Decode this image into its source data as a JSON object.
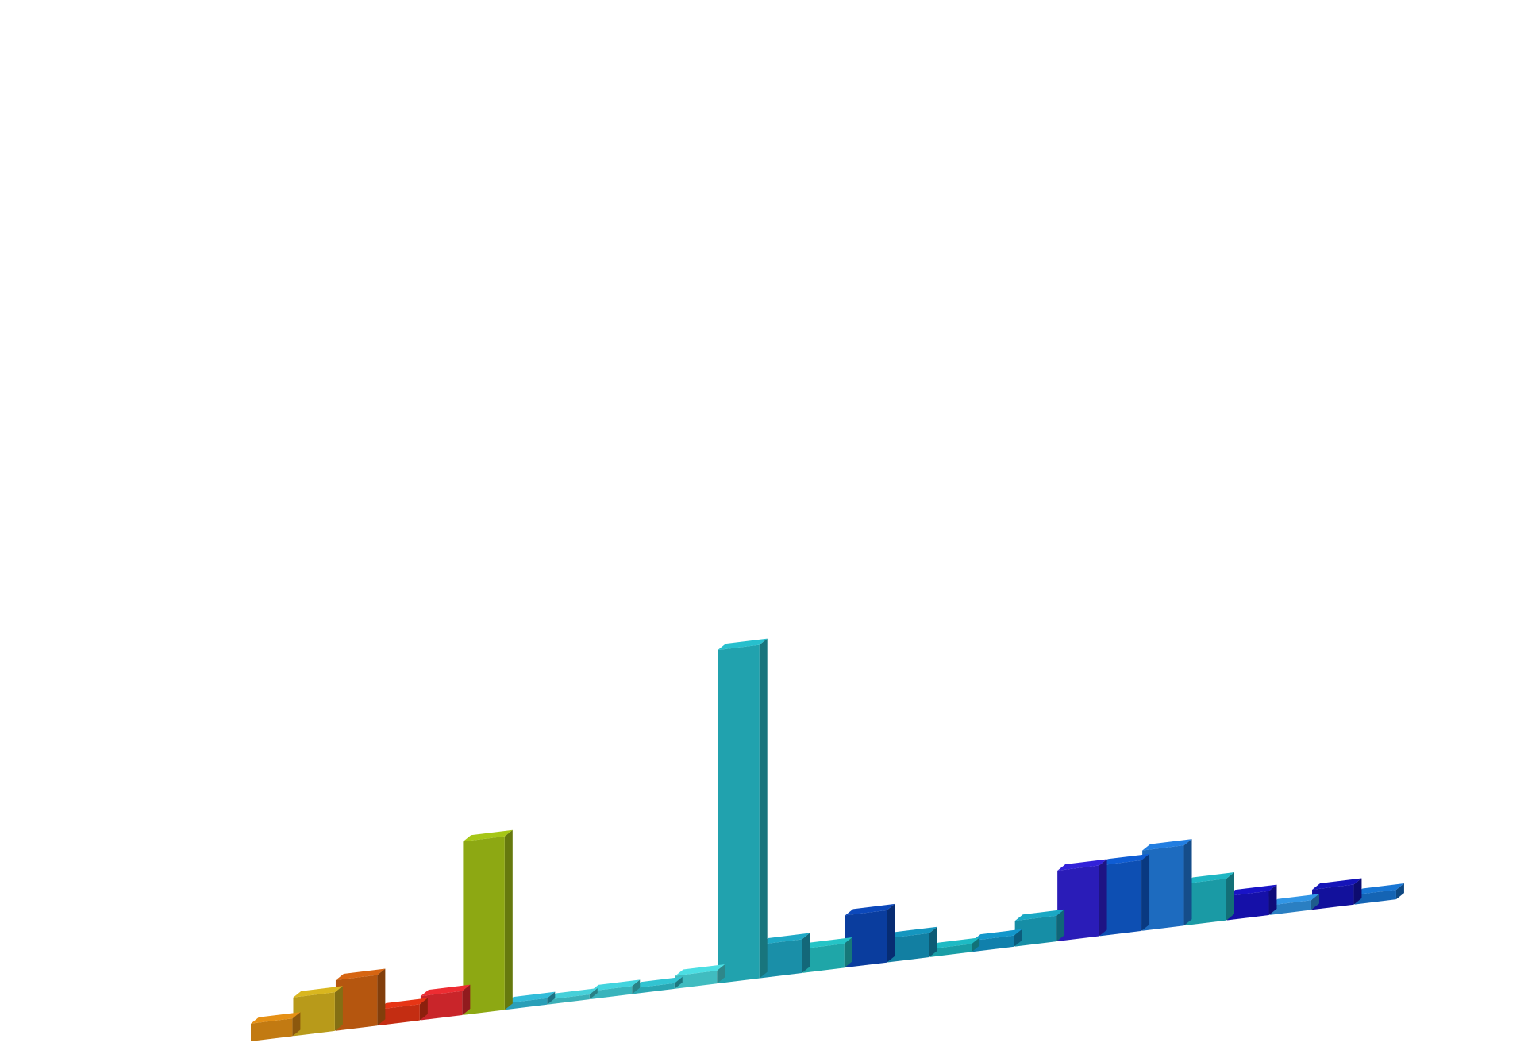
{
  "chart_data": {
    "type": "bar",
    "title": "",
    "xlabel": "",
    "ylabel": "",
    "grid": false,
    "legend": "none",
    "ylim": [
      0,
      415
    ],
    "values": [
      {
        "value": 22,
        "color": "#c27a12"
      },
      {
        "value": 48,
        "color": "#b89a1a"
      },
      {
        "value": 63,
        "color": "#b5560f"
      },
      {
        "value": 20,
        "color": "#c42d12"
      },
      {
        "value": 30,
        "color": "#c9252a"
      },
      {
        "value": 216,
        "color": "#8da813"
      },
      {
        "value": 8,
        "color": "#2a9fb8"
      },
      {
        "value": 6,
        "color": "#3bb0b8"
      },
      {
        "value": 10,
        "color": "#39b4bc"
      },
      {
        "value": 7,
        "color": "#2aa6b2"
      },
      {
        "value": 16,
        "color": "#40bcc0"
      },
      {
        "value": 415,
        "color": "#21a2ae"
      },
      {
        "value": 42,
        "color": "#1a8fa8"
      },
      {
        "value": 30,
        "color": "#1fa6a8"
      },
      {
        "value": 65,
        "color": "#0a3d9e"
      },
      {
        "value": 30,
        "color": "#127fa2"
      },
      {
        "value": 10,
        "color": "#199ea6"
      },
      {
        "value": 14,
        "color": "#1080ac"
      },
      {
        "value": 32,
        "color": "#168ea6"
      },
      {
        "value": 88,
        "color": "#2a1cb8"
      },
      {
        "value": 88,
        "color": "#0d4fb3"
      },
      {
        "value": 100,
        "color": "#1d6bbf"
      },
      {
        "value": 52,
        "color": "#1a9aa5"
      },
      {
        "value": 30,
        "color": "#1510a8"
      },
      {
        "value": 12,
        "color": "#2a7fc2"
      },
      {
        "value": 25,
        "color": "#12119c"
      },
      {
        "value": 12,
        "color": "#1464b4"
      }
    ]
  }
}
